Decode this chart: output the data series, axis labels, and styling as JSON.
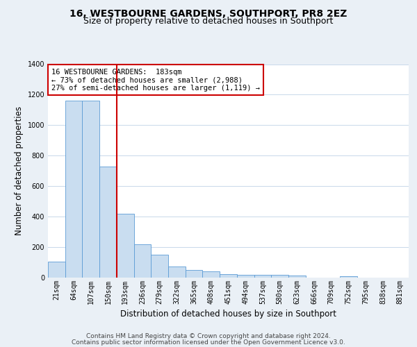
{
  "title": "16, WESTBOURNE GARDENS, SOUTHPORT, PR8 2EZ",
  "subtitle": "Size of property relative to detached houses in Southport",
  "xlabel": "Distribution of detached houses by size in Southport",
  "ylabel": "Number of detached properties",
  "bar_labels": [
    "21sqm",
    "64sqm",
    "107sqm",
    "150sqm",
    "193sqm",
    "236sqm",
    "279sqm",
    "322sqm",
    "365sqm",
    "408sqm",
    "451sqm",
    "494sqm",
    "537sqm",
    "580sqm",
    "623sqm",
    "666sqm",
    "709sqm",
    "752sqm",
    "795sqm",
    "838sqm",
    "881sqm"
  ],
  "bar_values": [
    105,
    1160,
    1160,
    730,
    420,
    220,
    148,
    75,
    50,
    40,
    25,
    20,
    18,
    18,
    15,
    0,
    0,
    10,
    0,
    0,
    0
  ],
  "bar_color": "#c9ddf0",
  "bar_edgecolor": "#5b9bd5",
  "vline_x": 4,
  "vline_color": "#cc0000",
  "annotation_line1": "16 WESTBOURNE GARDENS:  183sqm",
  "annotation_line2": "← 73% of detached houses are smaller (2,988)",
  "annotation_line3": "27% of semi-detached houses are larger (1,119) →",
  "annotation_box_edgecolor": "#cc0000",
  "annotation_box_facecolor": "#ffffff",
  "ylim": [
    0,
    1400
  ],
  "yticks": [
    0,
    200,
    400,
    600,
    800,
    1000,
    1200,
    1400
  ],
  "footer_line1": "Contains HM Land Registry data © Crown copyright and database right 2024.",
  "footer_line2": "Contains public sector information licensed under the Open Government Licence v3.0.",
  "bg_color": "#eaf0f6",
  "plot_bg_color": "#ffffff",
  "grid_color": "#c8d8ea",
  "title_fontsize": 10,
  "subtitle_fontsize": 9,
  "label_fontsize": 8.5,
  "tick_fontsize": 7,
  "footer_fontsize": 6.5,
  "annot_fontsize": 7.5
}
